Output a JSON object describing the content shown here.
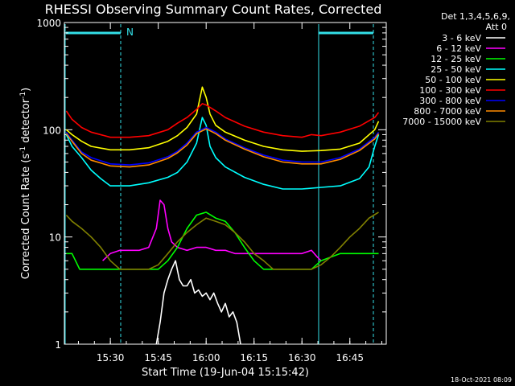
{
  "chart_data": {
    "type": "line",
    "title": "RHESSI Observing Summary Count Rates, Corrected",
    "xlabel": "Start Time (19-Jun-04 15:15:42)",
    "ylabel_main": "Corrected Count Rate (s",
    "ylabel_sup1": "-1",
    "ylabel_mid": " detector",
    "ylabel_sup2": "-1",
    "ylabel_end": ")",
    "y_scale": "log",
    "ylim": [
      1,
      1000
    ],
    "xlim_minutes": [
      15.26,
      16.94
    ],
    "x_ticks": [
      {
        "label": "15:30",
        "h": 15.5
      },
      {
        "label": "15:45",
        "h": 15.75
      },
      {
        "label": "16:00",
        "h": 16.0
      },
      {
        "label": "16:15",
        "h": 16.25
      },
      {
        "label": "16:30",
        "h": 16.5
      },
      {
        "label": "16:45",
        "h": 16.75
      }
    ],
    "y_ticks": [
      {
        "label": "1",
        "v": 1
      },
      {
        "label": "10",
        "v": 10
      },
      {
        "label": "100",
        "v": 100
      },
      {
        "label": "1000",
        "v": 1000
      }
    ],
    "legend_header": [
      "Det 1,3,4,5,6,9,",
      "Att 0"
    ],
    "legend_position": "right",
    "night_marker": "N",
    "night_color": "#33e0e8",
    "series": [
      {
        "name": "3 - 6 keV",
        "color": "#ffffff",
        "x": [
          15.74,
          15.76,
          15.78,
          15.8,
          15.82,
          15.84,
          15.86,
          15.88,
          15.9,
          15.92,
          15.94,
          15.96,
          15.98,
          16.0,
          16.02,
          16.04,
          16.06,
          16.08,
          16.1,
          16.12,
          16.14,
          16.16,
          16.18
        ],
        "y": [
          1,
          1.6,
          3,
          4,
          5,
          6,
          4,
          3.5,
          3.5,
          4,
          3,
          3.2,
          2.8,
          3,
          2.6,
          3,
          2.4,
          2,
          2.4,
          1.8,
          2,
          1.6,
          1
        ]
      },
      {
        "name": "6 - 12 keV",
        "color": "#ff00ff",
        "x": [
          15.46,
          15.5,
          15.55,
          15.6,
          15.65,
          15.7,
          15.74,
          15.76,
          15.78,
          15.8,
          15.82,
          15.85,
          15.9,
          15.95,
          16.0,
          16.05,
          16.1,
          16.15,
          16.2,
          16.3,
          16.4,
          16.5,
          16.55,
          16.58,
          16.6
        ],
        "y": [
          6,
          7,
          7.5,
          7.5,
          7.5,
          8,
          12,
          22,
          20,
          12,
          9,
          8,
          7.5,
          8,
          8,
          7.5,
          7.5,
          7,
          7,
          7,
          7,
          7,
          7.5,
          6.5,
          6
        ]
      },
      {
        "name": "12 - 25 keV",
        "color": "#00ff00",
        "x": [
          15.27,
          15.3,
          15.34,
          15.4,
          15.5,
          15.6,
          15.7,
          15.75,
          15.8,
          15.85,
          15.9,
          15.95,
          16.0,
          16.05,
          16.1,
          16.15,
          16.2,
          16.25,
          16.3,
          16.4,
          16.5,
          16.55,
          16.6,
          16.7,
          16.8,
          16.88,
          16.9
        ],
        "y": [
          7,
          7,
          5,
          5,
          5,
          5,
          5,
          5,
          6,
          8,
          12,
          16,
          17,
          15,
          14,
          11,
          8,
          6,
          5,
          5,
          5,
          5,
          6,
          7,
          7,
          7,
          7
        ]
      },
      {
        "name": "25 - 50 keV",
        "color": "#00ffff",
        "x": [
          15.27,
          15.3,
          15.35,
          15.4,
          15.45,
          15.5,
          15.6,
          15.7,
          15.8,
          15.85,
          15.9,
          15.95,
          15.98,
          16.0,
          16.02,
          16.05,
          16.1,
          16.2,
          16.3,
          16.4,
          16.5,
          16.6,
          16.7,
          16.8,
          16.85,
          16.88,
          16.9
        ],
        "y": [
          90,
          70,
          55,
          42,
          35,
          30,
          30,
          32,
          36,
          40,
          50,
          75,
          130,
          110,
          70,
          55,
          45,
          36,
          31,
          28,
          28,
          29,
          30,
          35,
          45,
          70,
          90
        ]
      },
      {
        "name": "50 - 100 keV",
        "color": "#ffff00",
        "x": [
          15.27,
          15.3,
          15.35,
          15.4,
          15.5,
          15.6,
          15.7,
          15.8,
          15.85,
          15.9,
          15.95,
          15.98,
          16.0,
          16.02,
          16.05,
          16.1,
          16.2,
          16.3,
          16.4,
          16.5,
          16.6,
          16.7,
          16.8,
          16.88,
          16.9
        ],
        "y": [
          100,
          90,
          78,
          70,
          65,
          65,
          68,
          78,
          88,
          105,
          140,
          250,
          200,
          140,
          110,
          95,
          80,
          70,
          65,
          63,
          64,
          66,
          75,
          100,
          120
        ]
      },
      {
        "name": "100 - 300 keV",
        "color": "#ff0000",
        "x": [
          15.27,
          15.3,
          15.35,
          15.4,
          15.5,
          15.6,
          15.7,
          15.8,
          15.85,
          15.9,
          15.95,
          15.98,
          16.0,
          16.05,
          16.1,
          16.2,
          16.3,
          16.4,
          16.5,
          16.55,
          16.6,
          16.7,
          16.8,
          16.88,
          16.9
        ],
        "y": [
          150,
          125,
          105,
          95,
          85,
          85,
          88,
          100,
          115,
          130,
          155,
          175,
          170,
          150,
          130,
          108,
          95,
          88,
          85,
          90,
          88,
          95,
          108,
          130,
          145
        ]
      },
      {
        "name": "300 - 800 keV",
        "color": "#0000ff",
        "x": [
          15.27,
          15.3,
          15.35,
          15.4,
          15.5,
          15.6,
          15.7,
          15.8,
          15.85,
          15.9,
          15.95,
          16.0,
          16.05,
          16.1,
          16.2,
          16.3,
          16.4,
          16.5,
          16.6,
          16.7,
          16.8,
          16.88,
          16.9
        ],
        "y": [
          95,
          80,
          62,
          55,
          48,
          47,
          49,
          56,
          63,
          75,
          95,
          105,
          95,
          82,
          68,
          58,
          52,
          50,
          50,
          55,
          66,
          85,
          95
        ]
      },
      {
        "name": "800 - 7000 keV",
        "color": "#ff8c00",
        "x": [
          15.27,
          15.3,
          15.35,
          15.4,
          15.5,
          15.6,
          15.7,
          15.8,
          15.85,
          15.9,
          15.95,
          16.0,
          16.05,
          16.1,
          16.2,
          16.3,
          16.4,
          16.5,
          16.6,
          16.7,
          16.8,
          16.88,
          16.9
        ],
        "y": [
          92,
          78,
          60,
          52,
          46,
          45,
          47,
          54,
          61,
          72,
          92,
          102,
          92,
          80,
          66,
          56,
          50,
          48,
          48,
          53,
          64,
          82,
          92
        ]
      },
      {
        "name": "7000 - 15000 keV",
        "color": "#808000",
        "x": [
          15.27,
          15.3,
          15.35,
          15.4,
          15.45,
          15.5,
          15.55,
          15.6,
          15.65,
          15.7,
          15.75,
          15.8,
          15.85,
          15.9,
          15.95,
          16.0,
          16.05,
          16.1,
          16.15,
          16.2,
          16.25,
          16.3,
          16.35,
          16.4,
          16.45,
          16.5,
          16.55,
          16.6,
          16.65,
          16.7,
          16.75,
          16.8,
          16.85,
          16.9
        ],
        "y": [
          16,
          14,
          12,
          10,
          8,
          6,
          5,
          5,
          5,
          5,
          5.5,
          7,
          9,
          11,
          13,
          15,
          14,
          13,
          11,
          9,
          7,
          6,
          5,
          5,
          5,
          5,
          5,
          5.5,
          6.5,
          8,
          10,
          12,
          15,
          17
        ]
      }
    ],
    "timestamp": "18-Oct-2021 08:09"
  }
}
